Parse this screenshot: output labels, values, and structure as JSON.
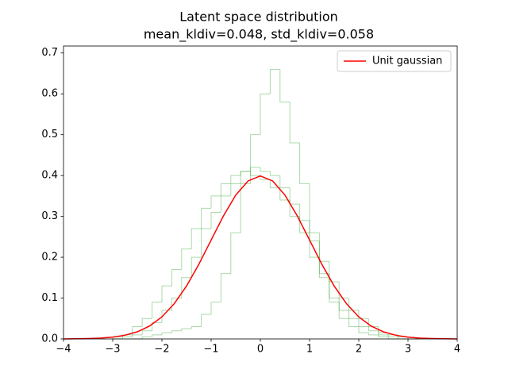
{
  "chart_data": {
    "type": "histogram",
    "title": "Latent space distribution",
    "subtitle": "mean_kldiv=0.048, std_kldiv=0.058",
    "xlim": [
      -4,
      4
    ],
    "ylim": [
      0,
      0.717
    ],
    "xticks": [
      {
        "value": -4,
        "label": "−4"
      },
      {
        "value": -3,
        "label": "−3"
      },
      {
        "value": -2,
        "label": "−2"
      },
      {
        "value": -1,
        "label": "−1"
      },
      0,
      1,
      2,
      3,
      4
    ],
    "yticks": [
      {
        "value": 0,
        "label": "0.0"
      },
      0.1,
      0.2,
      0.3,
      0.4,
      0.5,
      0.6,
      0.7
    ],
    "bins": [
      -3.0,
      -2.8,
      -2.6,
      -2.4,
      -2.2,
      -2.0,
      -1.8,
      -1.6,
      -1.4,
      -1.2,
      -1.0,
      -0.8,
      -0.6,
      -0.4,
      -0.2,
      0.0,
      0.2,
      0.4,
      0.6,
      0.8,
      1.0,
      1.2,
      1.4,
      1.6,
      1.8,
      2.0,
      2.2,
      2.4,
      2.6,
      2.8,
      3.0,
      3.2
    ],
    "series": [
      {
        "color": "#2ca02c",
        "values": [
          0,
          0,
          0,
          0.005,
          0.01,
          0.015,
          0.02,
          0.025,
          0.03,
          0.06,
          0.09,
          0.16,
          0.26,
          0.38,
          0.5,
          0.6,
          0.66,
          0.58,
          0.48,
          0.38,
          0.26,
          0.16,
          0.09,
          0.05,
          0.03,
          0.015,
          0.01,
          0.005,
          0,
          0,
          0
        ]
      },
      {
        "color": "#2ca02c",
        "values": [
          0.005,
          0.01,
          0.03,
          0.05,
          0.09,
          0.13,
          0.17,
          0.22,
          0.27,
          0.32,
          0.35,
          0.38,
          0.4,
          0.41,
          0.4,
          0.39,
          0.37,
          0.34,
          0.3,
          0.26,
          0.2,
          0.15,
          0.1,
          0.07,
          0.05,
          0.03,
          0.02,
          0.01,
          0.005,
          0,
          0
        ]
      },
      {
        "color": "#2ca02c",
        "values": [
          0,
          0.005,
          0.01,
          0.02,
          0.04,
          0.07,
          0.1,
          0.15,
          0.2,
          0.27,
          0.31,
          0.35,
          0.38,
          0.41,
          0.42,
          0.41,
          0.4,
          0.37,
          0.33,
          0.29,
          0.24,
          0.19,
          0.14,
          0.1,
          0.07,
          0.05,
          0.03,
          0.015,
          0.01,
          0.005,
          0
        ]
      }
    ],
    "line": {
      "name": "Unit gaussian",
      "color": "#ff0000",
      "x": [
        -4,
        -3.75,
        -3.5,
        -3.25,
        -3,
        -2.75,
        -2.5,
        -2.25,
        -2,
        -1.75,
        -1.5,
        -1.25,
        -1,
        -0.75,
        -0.5,
        -0.25,
        0,
        0.25,
        0.5,
        0.75,
        1,
        1.25,
        1.5,
        1.75,
        2,
        2.25,
        2.5,
        2.75,
        3,
        3.25,
        3.5,
        3.75,
        4
      ],
      "values": [
        0.0001,
        0.0004,
        0.0009,
        0.002,
        0.0044,
        0.0091,
        0.0175,
        0.0317,
        0.054,
        0.0863,
        0.1295,
        0.1826,
        0.242,
        0.3011,
        0.3521,
        0.3867,
        0.3989,
        0.3867,
        0.3521,
        0.3011,
        0.242,
        0.1826,
        0.1295,
        0.0863,
        0.054,
        0.0317,
        0.0175,
        0.0091,
        0.0044,
        0.002,
        0.0009,
        0.0004,
        0.0001
      ]
    },
    "legend": "upper right"
  }
}
